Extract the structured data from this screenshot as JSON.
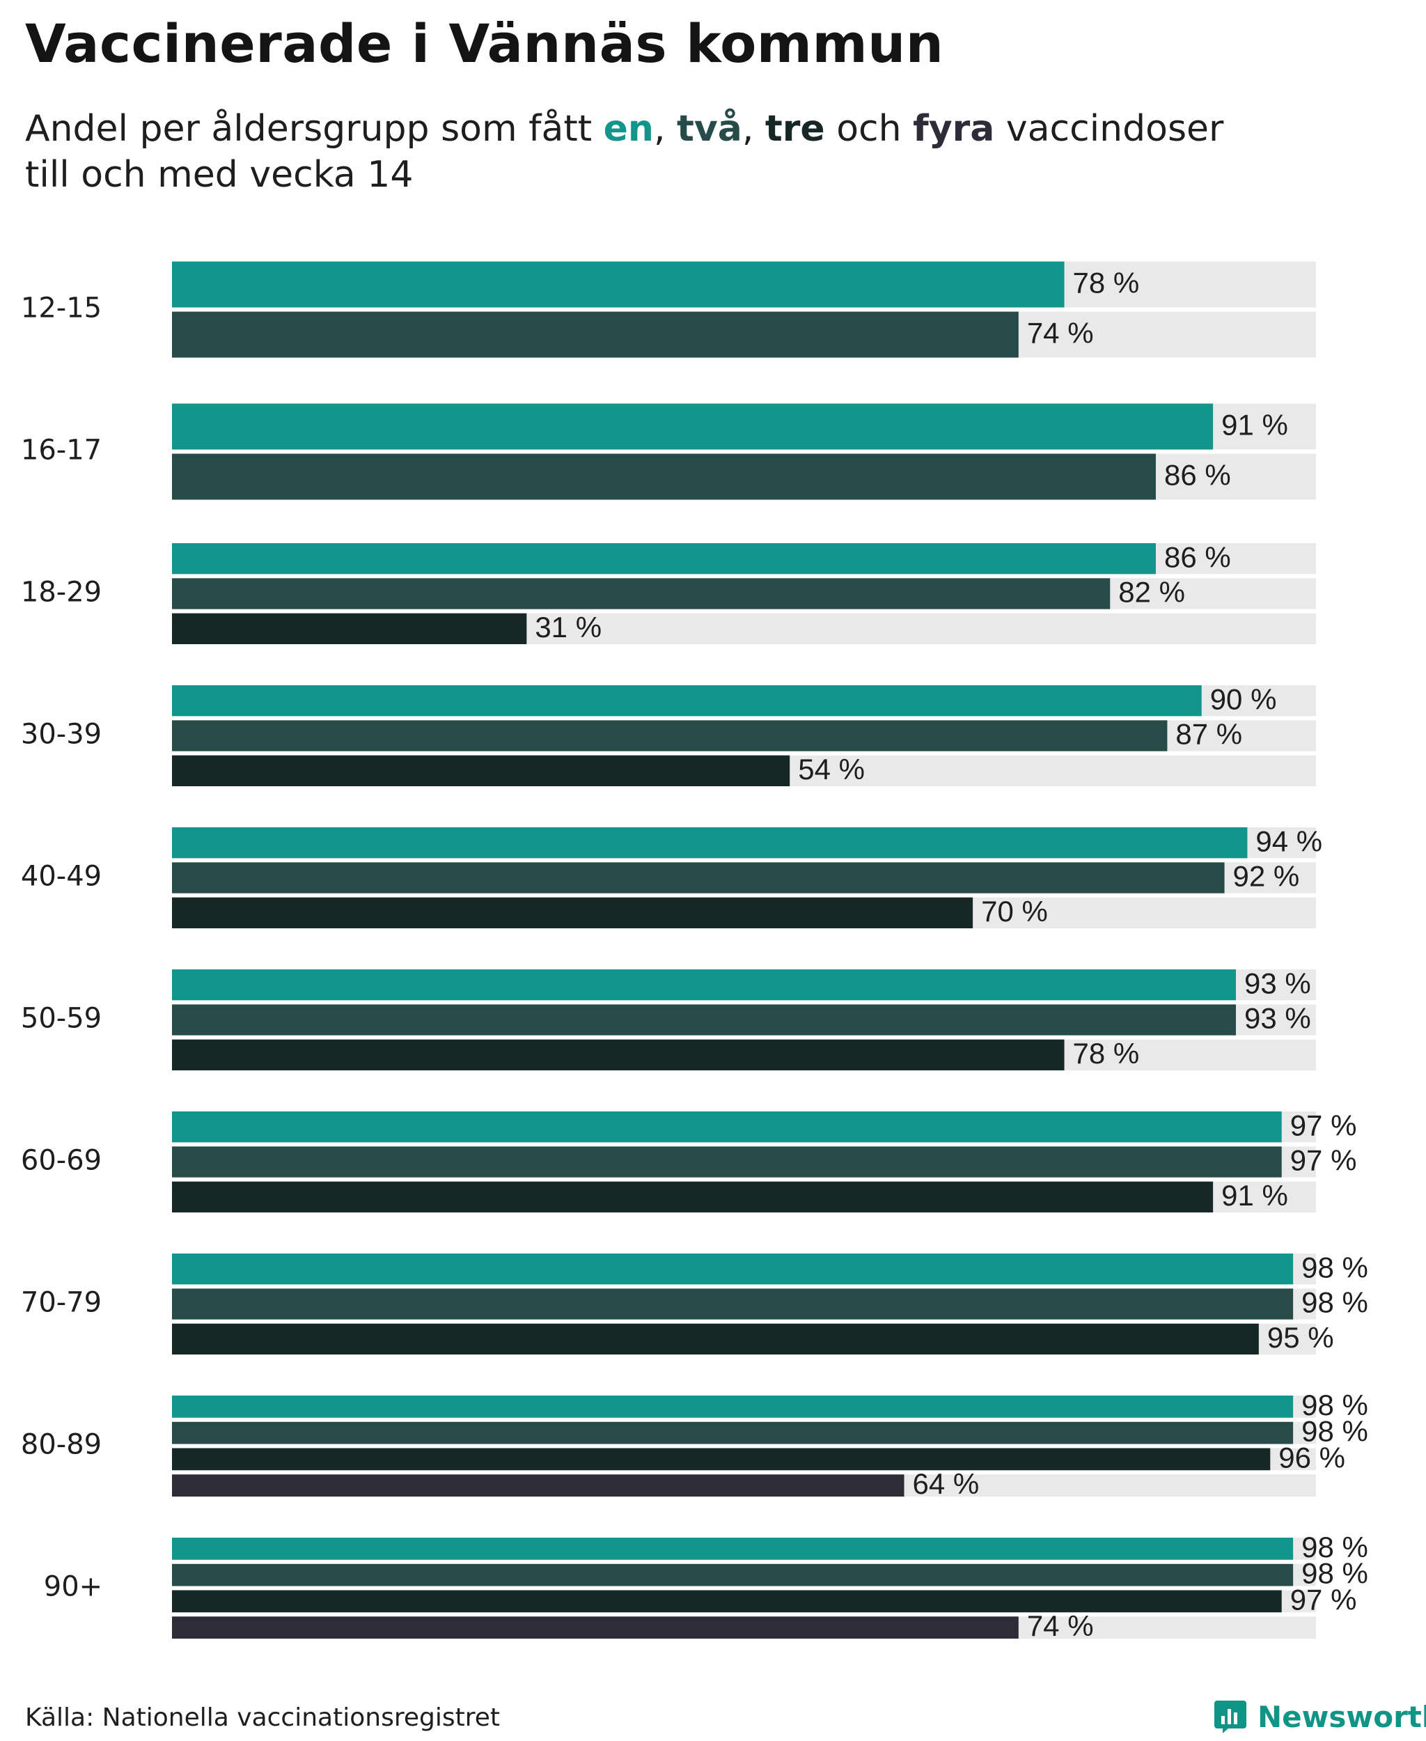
{
  "header": {
    "title": "Vaccinerade i Vännäs kommun",
    "subtitle_pre": "Andel per åldersgrupp som fått ",
    "kw_en": "en",
    "sep1": ", ",
    "kw_tva": "två",
    "sep2": ", ",
    "kw_tre": "tre",
    "sep3": " och ",
    "kw_fyra": "fyra",
    "subtitle_post": " vaccindoser",
    "subtitle_line2": "till och med vecka 14"
  },
  "footer": {
    "source": "Källa: Nationella vaccinationsregistret",
    "brand": "Newsworthy"
  },
  "colors": {
    "dose1": "#12958a",
    "dose2": "#264b49",
    "dose3": "#172726",
    "dose4": "#2e2c38",
    "track": "#e9e9e9"
  },
  "icons": {
    "brand_logo": "bar-chart-logo-icon"
  },
  "chart_data": {
    "type": "bar",
    "orientation": "horizontal",
    "title": "Vaccinerade i Vännäs kommun",
    "xlim": [
      0,
      100
    ],
    "unit": "%",
    "categories": [
      "12-15",
      "16-17",
      "18-29",
      "30-39",
      "40-49",
      "50-59",
      "60-69",
      "70-79",
      "80-89",
      "90+"
    ],
    "series": [
      {
        "name": "en",
        "values": [
          78,
          91,
          86,
          90,
          94,
          93,
          97,
          98,
          98,
          98
        ]
      },
      {
        "name": "två",
        "values": [
          74,
          86,
          82,
          87,
          92,
          93,
          97,
          98,
          98,
          98
        ]
      },
      {
        "name": "tre",
        "values": [
          null,
          null,
          31,
          54,
          70,
          78,
          91,
          95,
          96,
          97
        ]
      },
      {
        "name": "fyra",
        "values": [
          null,
          null,
          null,
          null,
          null,
          null,
          null,
          null,
          64,
          74
        ]
      }
    ]
  }
}
